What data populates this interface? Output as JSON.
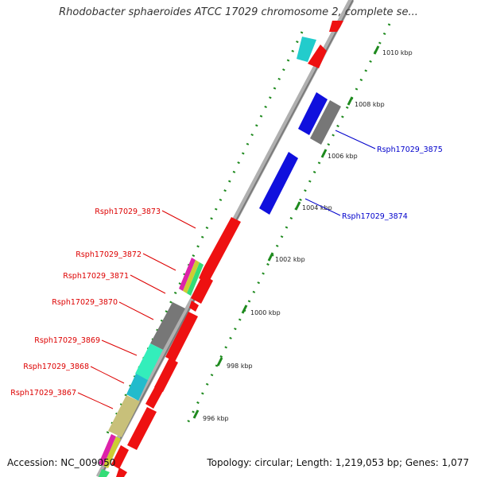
{
  "title": "Rhodobacter sphaeroides ATCC 17029 chromosome 2, complete se...",
  "accession": "Accession: NC_009050",
  "summary": "Topology: circular; Length: 1,219,053 bp; Genes: 1,077",
  "colors": {
    "background": "#ffffff",
    "backbone": "#9a9a9a",
    "tick": "#1e8a1e",
    "label_red": "#dd0000",
    "label_blue": "#0000cc",
    "gene_red": "#ee1111",
    "gene_blue": "#1010dd",
    "gene_gray": "#777777",
    "gene_cyan": "#22cccc",
    "gene_teal": "#33eebb",
    "gene_olive": "#c8c07a",
    "gene_magenta": "#dd22aa"
  },
  "scale_labels": [
    {
      "text": "1010 kbp"
    },
    {
      "text": "1008 kbp"
    },
    {
      "text": "1006 kbp"
    },
    {
      "text": "1004 kbp"
    },
    {
      "text": "1002 kbp"
    },
    {
      "text": "1000 kbp"
    },
    {
      "text": "998 kbp"
    },
    {
      "text": "996 kbp"
    }
  ],
  "gene_labels": [
    {
      "text": "Rsph17029_3875",
      "strand": "plus"
    },
    {
      "text": "Rsph17029_3874",
      "strand": "plus"
    },
    {
      "text": "Rsph17029_3873",
      "strand": "minus"
    },
    {
      "text": "Rsph17029_3872",
      "strand": "minus"
    },
    {
      "text": "Rsph17029_3871",
      "strand": "minus"
    },
    {
      "text": "Rsph17029_3870",
      "strand": "minus"
    },
    {
      "text": "Rsph17029_3869",
      "strand": "minus"
    },
    {
      "text": "Rsph17029_3868",
      "strand": "minus"
    },
    {
      "text": "Rsph17029_3867",
      "strand": "minus"
    }
  ]
}
